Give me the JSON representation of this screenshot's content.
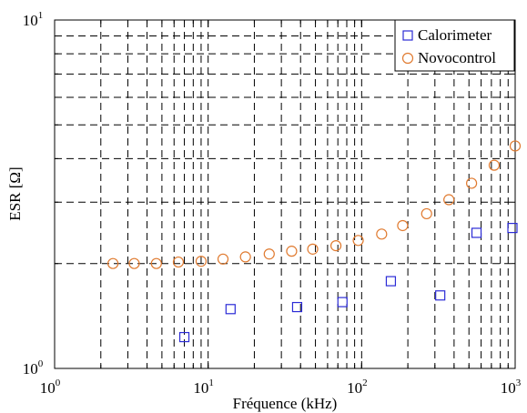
{
  "chart_data": {
    "type": "scatter",
    "title": "",
    "xlabel": "Fréquence (kHz)",
    "ylabel": "ESR [Ω]",
    "x_scale": "log",
    "y_scale": "log",
    "xlim": [
      1,
      1000
    ],
    "ylim": [
      1,
      10
    ],
    "grid": true,
    "legend_position": "top-right",
    "x_tick_labels": [
      {
        "base": "10",
        "exp": "0"
      },
      {
        "base": "10",
        "exp": "1"
      },
      {
        "base": "10",
        "exp": "2"
      },
      {
        "base": "10",
        "exp": "3"
      }
    ],
    "y_tick_labels": [
      {
        "base": "10",
        "exp": "0"
      },
      {
        "base": "10",
        "exp": "1"
      }
    ],
    "series": [
      {
        "name": "Calorimeter",
        "marker": "square",
        "color": "#2b2bd6",
        "x": [
          7,
          14,
          38,
          75,
          155,
          325,
          560,
          960
        ],
        "y": [
          1.23,
          1.48,
          1.5,
          1.55,
          1.78,
          1.62,
          2.45,
          2.53
        ]
      },
      {
        "name": "Novocontrol",
        "marker": "circle",
        "color": "#e07a2f",
        "x": [
          2.4,
          3.3,
          4.6,
          6.4,
          9,
          12.5,
          17.5,
          25,
          35,
          48,
          68,
          95,
          135,
          185,
          265,
          370,
          520,
          730,
          1000
        ],
        "y": [
          2.0,
          2.0,
          2.0,
          2.02,
          2.03,
          2.06,
          2.09,
          2.13,
          2.17,
          2.2,
          2.25,
          2.33,
          2.43,
          2.57,
          2.78,
          3.05,
          3.4,
          3.83,
          4.35
        ]
      }
    ]
  }
}
